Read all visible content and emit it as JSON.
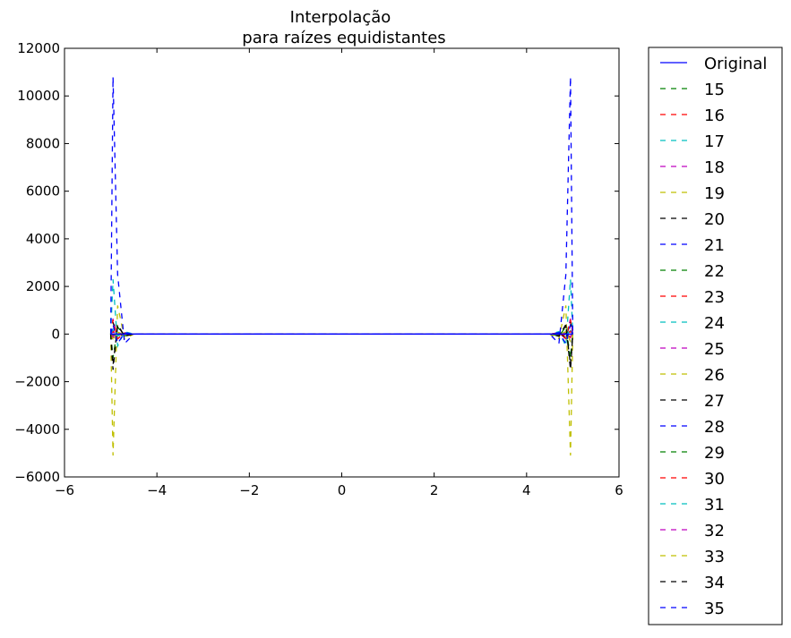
{
  "chart_data": {
    "type": "line",
    "title": "Interpolação",
    "subtitle": "para raízes equidistantes",
    "xlabel": "",
    "ylabel": "",
    "xlim": [
      -6,
      6
    ],
    "ylim": [
      -6000,
      12000
    ],
    "xticks": [
      -6,
      -4,
      -2,
      0,
      2,
      4,
      6
    ],
    "xtick_labels": [
      "−6",
      "−4",
      "−2",
      "0",
      "2",
      "4",
      "6"
    ],
    "yticks": [
      -6000,
      -4000,
      -2000,
      0,
      2000,
      4000,
      6000,
      8000,
      10000,
      12000
    ],
    "ytick_labels": [
      "−6000",
      "−4000",
      "−2000",
      "0",
      "2000",
      "4000",
      "6000",
      "8000",
      "10000",
      "12000"
    ],
    "grid": false,
    "legend_position": "outside-right",
    "series": [
      {
        "name": "Original",
        "color": "#0000ff",
        "style": "solid",
        "x": [
          -5,
          -4.5,
          0,
          4.5,
          5
        ],
        "y": [
          0.04,
          0.05,
          1,
          0.05,
          0.04
        ]
      },
      {
        "name": "15",
        "color": "#008000",
        "style": "dashed",
        "x": [
          -5,
          -4.95,
          -4.85,
          -4.7,
          -4.5,
          4.5,
          4.7,
          4.85,
          4.95,
          5
        ],
        "y": [
          0,
          -60,
          30,
          -10,
          0,
          0,
          -10,
          30,
          -60,
          0
        ]
      },
      {
        "name": "16",
        "color": "#ff0000",
        "style": "dashed",
        "x": [
          -5,
          -4.95,
          -4.85,
          -4.7,
          -4.5,
          4.5,
          4.7,
          4.85,
          4.95,
          5
        ],
        "y": [
          0,
          -150,
          60,
          -20,
          0,
          0,
          -20,
          60,
          -150,
          0
        ]
      },
      {
        "name": "17",
        "color": "#00bfbf",
        "style": "dashed",
        "x": [
          -5,
          -4.95,
          -4.85,
          -4.7,
          -4.5,
          4.5,
          4.7,
          4.85,
          4.95,
          5
        ],
        "y": [
          0,
          150,
          -60,
          20,
          0,
          0,
          20,
          -60,
          150,
          0
        ]
      },
      {
        "name": "18",
        "color": "#bf00bf",
        "style": "dashed",
        "x": [
          -5,
          -4.95,
          -4.85,
          -4.7,
          -4.5,
          4.5,
          4.7,
          4.85,
          4.95,
          5
        ],
        "y": [
          0,
          650,
          -200,
          50,
          0,
          0,
          50,
          -200,
          650,
          0
        ]
      },
      {
        "name": "19",
        "color": "#bfbf00",
        "style": "dashed",
        "x": [
          -5,
          -4.95,
          -4.85,
          -4.7,
          -4.5,
          4.5,
          4.7,
          4.85,
          4.95,
          5
        ],
        "y": [
          0,
          -200,
          80,
          -20,
          0,
          0,
          -20,
          80,
          -200,
          0
        ]
      },
      {
        "name": "20",
        "color": "#000000",
        "style": "dashed",
        "x": [
          -5,
          -4.95,
          -4.85,
          -4.7,
          -4.5,
          4.5,
          4.7,
          4.85,
          4.95,
          5
        ],
        "y": [
          0,
          500,
          -150,
          40,
          0,
          0,
          40,
          -150,
          500,
          0
        ]
      },
      {
        "name": "21",
        "color": "#0000ff",
        "style": "dashed",
        "x": [
          -5,
          -4.95,
          -4.85,
          -4.7,
          -4.5,
          4.5,
          4.7,
          4.85,
          4.95,
          5
        ],
        "y": [
          0,
          -300,
          100,
          -30,
          0,
          0,
          -30,
          100,
          -300,
          0
        ]
      },
      {
        "name": "22",
        "color": "#008000",
        "style": "dashed",
        "x": [
          -5,
          -4.95,
          -4.85,
          -4.7,
          -4.5,
          4.5,
          4.7,
          4.85,
          4.95,
          5
        ],
        "y": [
          0,
          -1000,
          300,
          -80,
          0,
          0,
          -80,
          300,
          -1000,
          0
        ]
      },
      {
        "name": "23",
        "color": "#ff0000",
        "style": "dashed",
        "x": [
          -5,
          -4.95,
          -4.85,
          -4.7,
          -4.5,
          4.5,
          4.7,
          4.85,
          4.95,
          5
        ],
        "y": [
          0,
          600,
          -200,
          50,
          0,
          0,
          50,
          -200,
          600,
          0
        ]
      },
      {
        "name": "24",
        "color": "#00bfbf",
        "style": "dashed",
        "x": [
          -5,
          -4.95,
          -4.85,
          -4.7,
          -4.5,
          4.5,
          4.7,
          4.85,
          4.95,
          5
        ],
        "y": [
          0,
          2300,
          -500,
          100,
          0,
          0,
          100,
          -500,
          2300,
          0
        ]
      },
      {
        "name": "25",
        "color": "#bf00bf",
        "style": "dashed",
        "x": [
          -5,
          -4.95,
          -4.85,
          -4.7,
          -4.5,
          4.5,
          4.7,
          4.85,
          4.95,
          5
        ],
        "y": [
          0,
          100,
          -40,
          10,
          0,
          0,
          10,
          -40,
          100,
          0
        ]
      },
      {
        "name": "26",
        "color": "#bfbf00",
        "style": "dashed",
        "x": [
          -5,
          -4.95,
          -4.85,
          -4.7,
          -4.5,
          4.5,
          4.7,
          4.85,
          4.95,
          5
        ],
        "y": [
          0,
          -5100,
          1200,
          -200,
          0,
          0,
          -200,
          1200,
          -5100,
          0
        ]
      },
      {
        "name": "27",
        "color": "#000000",
        "style": "dashed",
        "x": [
          -5,
          -4.95,
          -4.85,
          -4.7,
          -4.5,
          4.5,
          4.7,
          4.85,
          4.95,
          5
        ],
        "y": [
          0,
          -1500,
          400,
          -90,
          0,
          0,
          -90,
          400,
          -1500,
          0
        ]
      },
      {
        "name": "28",
        "color": "#0000ff",
        "style": "dashed",
        "x": [
          -5,
          -4.95,
          -4.85,
          -4.7,
          -4.5,
          4.5,
          4.7,
          4.85,
          4.95,
          5
        ],
        "y": [
          0,
          10800,
          2500,
          -400,
          0,
          0,
          -400,
          2500,
          10800,
          0
        ]
      },
      {
        "name": "29",
        "color": "#008000",
        "style": "dashed",
        "x": [
          -5,
          -4.95,
          -4.85,
          -4.7,
          -4.5,
          4.5,
          4.7,
          4.85,
          4.95,
          5
        ],
        "y": [
          0,
          -80,
          30,
          -10,
          0,
          0,
          -10,
          30,
          -80,
          0
        ]
      },
      {
        "name": "30",
        "color": "#ff0000",
        "style": "dashed",
        "x": [
          -5,
          -4.95,
          -4.85,
          -4.7,
          -4.5,
          4.5,
          4.7,
          4.85,
          4.95,
          5
        ],
        "y": [
          0,
          120,
          -50,
          10,
          0,
          0,
          10,
          -50,
          120,
          0
        ]
      },
      {
        "name": "31",
        "color": "#00bfbf",
        "style": "dashed",
        "x": [
          -5,
          -4.95,
          -4.85,
          -4.7,
          -4.5,
          4.5,
          4.7,
          4.85,
          4.95,
          5
        ],
        "y": [
          0,
          200,
          -80,
          20,
          0,
          0,
          20,
          -80,
          200,
          0
        ]
      },
      {
        "name": "32",
        "color": "#bf00bf",
        "style": "dashed",
        "x": [
          -5,
          -4.95,
          -4.85,
          -4.7,
          -4.5,
          4.5,
          4.7,
          4.85,
          4.95,
          5
        ],
        "y": [
          0,
          -100,
          40,
          -10,
          0,
          0,
          -10,
          40,
          -100,
          0
        ]
      },
      {
        "name": "33",
        "color": "#bfbf00",
        "style": "dashed",
        "x": [
          -5,
          -4.95,
          -4.85,
          -4.7,
          -4.5,
          4.5,
          4.7,
          4.85,
          4.95,
          5
        ],
        "y": [
          0,
          -300,
          100,
          -20,
          0,
          0,
          -20,
          100,
          -300,
          0
        ]
      },
      {
        "name": "34",
        "color": "#000000",
        "style": "dashed",
        "x": [
          -5,
          -4.95,
          -4.85,
          -4.7,
          -4.5,
          4.5,
          4.7,
          4.85,
          4.95,
          5
        ],
        "y": [
          0,
          -1300,
          350,
          -70,
          0,
          0,
          -70,
          350,
          -1300,
          0
        ]
      },
      {
        "name": "35",
        "color": "#0000ff",
        "style": "dashed",
        "x": [
          -5,
          -4.95,
          -4.85,
          -4.7,
          -4.5,
          4.5,
          4.7,
          4.85,
          4.95,
          5
        ],
        "y": [
          0,
          400,
          -400,
          60,
          0,
          0,
          60,
          -400,
          400,
          0
        ]
      }
    ]
  }
}
